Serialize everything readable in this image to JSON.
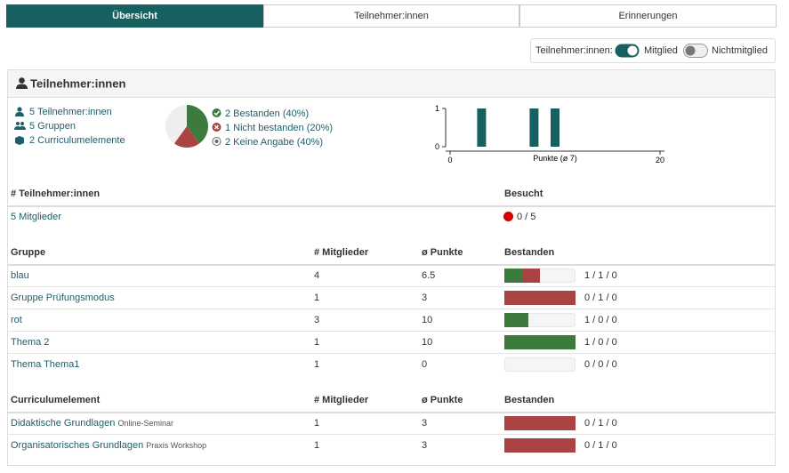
{
  "tabs": [
    "Übersicht",
    "Teilnehmer:innen",
    "Erinnerungen"
  ],
  "toggles": {
    "label": "Teilnehmer:innen:",
    "options": [
      "Mitglied",
      "Nichtmitglied"
    ]
  },
  "panel_title": "Teilnehmer:innen",
  "summary": [
    "5 Teilnehmer:innen",
    "5 Gruppen",
    "2 Curriculumelemente"
  ],
  "pie": {
    "type": "pie",
    "values": [
      40,
      20,
      40
    ],
    "value_labels": [
      "2 Bestanden (40%)",
      "1 Nicht bestanden (20%)",
      "2 Keine Angabe (40%)"
    ],
    "colors": [
      "#3d7a3d",
      "#a94442",
      "#eeeeee"
    ]
  },
  "histogram": {
    "type": "bar",
    "x": [
      3,
      8,
      10
    ],
    "values": [
      1,
      1,
      1
    ],
    "xlim": [
      0,
      20
    ],
    "xticks": [
      0,
      20
    ],
    "ylim": [
      0,
      1
    ],
    "yticks": [
      0,
      1
    ],
    "xlabel": "Punkte (ø 7)",
    "color": "#17605f"
  },
  "members_table": {
    "headers": [
      "# Teilnehmer:innen",
      "Besucht"
    ],
    "rows": [
      [
        "5 Mitglieder",
        "0 / 5"
      ]
    ]
  },
  "group_table": {
    "headers": [
      "Gruppe",
      "# Mitglieder",
      "ø Punkte",
      "Bestanden"
    ],
    "rows": [
      {
        "name": "blau",
        "members": 4,
        "points": 6.5,
        "passed": {
          "label": "1 / 1 / 0",
          "counts": [
            1,
            1,
            0
          ]
        }
      },
      {
        "name": "Gruppe Prüfungsmodus",
        "members": 1,
        "points": 3,
        "passed": {
          "label": "0 / 1 / 0",
          "counts": [
            0,
            1,
            0
          ]
        }
      },
      {
        "name": "rot",
        "members": 3,
        "points": 10,
        "passed": {
          "label": "1 / 0 / 0",
          "counts": [
            1,
            0,
            0
          ]
        }
      },
      {
        "name": "Thema 2",
        "members": 1,
        "points": 10,
        "passed": {
          "label": "1 / 0 / 0",
          "counts": [
            1,
            0,
            0
          ]
        }
      },
      {
        "name": "Thema Thema1",
        "members": 1,
        "points": 0,
        "passed": {
          "label": "0 / 0 / 0",
          "counts": [
            0,
            0,
            0
          ]
        }
      }
    ]
  },
  "curriculum_table": {
    "headers": [
      "Curriculumelement",
      "# Mitglieder",
      "ø Punkte",
      "Bestanden"
    ],
    "rows": [
      {
        "name": "Didaktische Grundlagen",
        "sub": "Online-Seminar",
        "members": 1,
        "points": 3,
        "passed": {
          "label": "0 / 1 / 0",
          "counts": [
            0,
            1,
            0
          ]
        }
      },
      {
        "name": "Organisatorisches Grundlagen",
        "sub": "Praxis Workshop",
        "members": 1,
        "points": 3,
        "passed": {
          "label": "0 / 1 / 0",
          "counts": [
            0,
            1,
            0
          ]
        }
      }
    ]
  }
}
